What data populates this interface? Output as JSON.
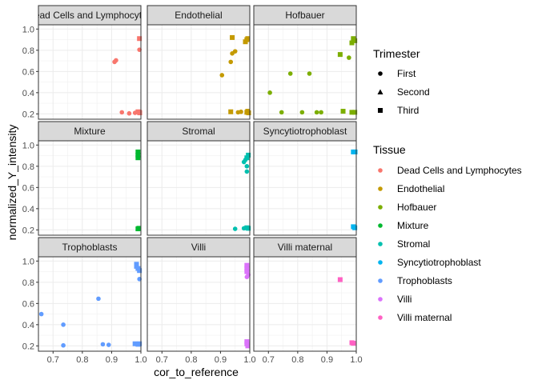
{
  "chart_data": {
    "type": "scatter",
    "xlabel": "cor_to_reference",
    "ylabel": "normalized_Y_intensity",
    "xlim": [
      0.65,
      1.0
    ],
    "ylim": [
      0.2,
      1.0
    ],
    "x_ticks": [
      "0.7",
      "0.8",
      "0.9",
      "1.0"
    ],
    "y_ticks": [
      "0.2",
      "0.4",
      "0.6",
      "0.8",
      "1.0"
    ],
    "facet_layout": "3x3",
    "legends": {
      "shape": {
        "title": "Trimester",
        "entries": [
          {
            "label": "First",
            "shape": "circle"
          },
          {
            "label": "Second",
            "shape": "triangle"
          },
          {
            "label": "Third",
            "shape": "square"
          }
        ]
      },
      "color": {
        "title": "Tissue",
        "entries": [
          {
            "label": "Dead Cells and Lymphocytes",
            "color": "#F8766D"
          },
          {
            "label": "Endothelial",
            "color": "#C49A00"
          },
          {
            "label": "Hofbauer",
            "color": "#7CAE00"
          },
          {
            "label": "Mixture",
            "color": "#00B82F"
          },
          {
            "label": "Stromal",
            "color": "#00C0AF"
          },
          {
            "label": "Syncytiotrophoblast",
            "color": "#00B4EF"
          },
          {
            "label": "Trophoblasts",
            "color": "#619CFF"
          },
          {
            "label": "Villi",
            "color": "#DB72FB"
          },
          {
            "label": "Villi maternal",
            "color": "#FF61C3"
          }
        ]
      }
    },
    "panels": [
      {
        "title": "Dead Cells and Lymphocytes",
        "color": "#F8766D",
        "points": [
          [
            0.995,
            0.91,
            "Third"
          ],
          [
            0.91,
            0.69,
            "First"
          ],
          [
            0.915,
            0.705,
            "First"
          ],
          [
            0.995,
            0.805,
            "First"
          ],
          [
            0.935,
            0.215,
            "First"
          ],
          [
            0.96,
            0.205,
            "First"
          ],
          [
            0.98,
            0.21,
            "First"
          ],
          [
            0.99,
            0.22,
            "Third"
          ],
          [
            0.995,
            0.215,
            "Third"
          ],
          [
            0.996,
            0.21,
            "Third"
          ]
        ]
      },
      {
        "title": "Endothelial",
        "color": "#C49A00",
        "points": [
          [
            0.94,
            0.92,
            "Third"
          ],
          [
            0.985,
            0.88,
            "Third"
          ],
          [
            0.99,
            0.9,
            "Third"
          ],
          [
            0.993,
            0.91,
            "Third"
          ],
          [
            0.95,
            0.79,
            "First"
          ],
          [
            0.94,
            0.77,
            "First"
          ],
          [
            0.935,
            0.69,
            "First"
          ],
          [
            0.905,
            0.565,
            "First"
          ],
          [
            0.935,
            0.22,
            "Third"
          ],
          [
            0.96,
            0.215,
            "First"
          ],
          [
            0.97,
            0.22,
            "First"
          ],
          [
            0.99,
            0.215,
            "Third"
          ],
          [
            0.993,
            0.225,
            "Third"
          ],
          [
            0.996,
            0.21,
            "Third"
          ]
        ]
      },
      {
        "title": "Hofbauer",
        "color": "#7CAE00",
        "points": [
          [
            0.99,
            0.91,
            "Third"
          ],
          [
            0.985,
            0.87,
            "Third"
          ],
          [
            0.995,
            0.89,
            "Third"
          ],
          [
            0.975,
            0.73,
            "First"
          ],
          [
            0.945,
            0.76,
            "Third"
          ],
          [
            0.705,
            0.4,
            "First"
          ],
          [
            0.775,
            0.58,
            "First"
          ],
          [
            0.84,
            0.58,
            "First"
          ],
          [
            0.745,
            0.215,
            "First"
          ],
          [
            0.815,
            0.215,
            "First"
          ],
          [
            0.865,
            0.215,
            "First"
          ],
          [
            0.88,
            0.215,
            "First"
          ],
          [
            0.955,
            0.225,
            "Third"
          ],
          [
            0.985,
            0.215,
            "Third"
          ],
          [
            0.995,
            0.215,
            "Third"
          ]
        ]
      },
      {
        "title": "Mixture",
        "color": "#00B82F",
        "points": [
          [
            0.99,
            0.935,
            "Third"
          ],
          [
            0.99,
            0.905,
            "Third"
          ],
          [
            0.99,
            0.88,
            "Third"
          ],
          [
            0.99,
            0.21,
            "Third"
          ],
          [
            0.993,
            0.215,
            "Third"
          ]
        ]
      },
      {
        "title": "Stromal",
        "color": "#00C0AF",
        "points": [
          [
            0.995,
            0.905,
            "Third"
          ],
          [
            0.99,
            0.88,
            "Third"
          ],
          [
            0.985,
            0.86,
            "First"
          ],
          [
            0.98,
            0.84,
            "First"
          ],
          [
            0.99,
            0.8,
            "First"
          ],
          [
            0.99,
            0.75,
            "First"
          ],
          [
            0.95,
            0.21,
            "First"
          ],
          [
            0.98,
            0.215,
            "First"
          ],
          [
            0.99,
            0.22,
            "Third"
          ],
          [
            0.995,
            0.215,
            "Third"
          ]
        ]
      },
      {
        "title": "Syncytiotrophoblast",
        "color": "#00B4EF",
        "points": [
          [
            0.99,
            0.935,
            "Third"
          ],
          [
            0.996,
            0.935,
            "Third"
          ],
          [
            0.99,
            0.23,
            "Third"
          ],
          [
            0.995,
            0.22,
            "Third"
          ]
        ]
      },
      {
        "title": "Trophoblasts",
        "color": "#619CFF",
        "points": [
          [
            0.985,
            0.97,
            "Third"
          ],
          [
            0.99,
            0.93,
            "Third"
          ],
          [
            0.995,
            0.91,
            "Third"
          ],
          [
            0.985,
            0.95,
            "Third"
          ],
          [
            0.995,
            0.83,
            "First"
          ],
          [
            0.66,
            0.5,
            "First"
          ],
          [
            0.735,
            0.4,
            "First"
          ],
          [
            0.855,
            0.645,
            "First"
          ],
          [
            0.735,
            0.205,
            "First"
          ],
          [
            0.87,
            0.215,
            "First"
          ],
          [
            0.89,
            0.21,
            "First"
          ],
          [
            0.98,
            0.22,
            "Third"
          ],
          [
            0.99,
            0.215,
            "Third"
          ],
          [
            0.995,
            0.22,
            "Third"
          ]
        ]
      },
      {
        "title": "Villi",
        "color": "#DB72FB",
        "points": [
          [
            0.99,
            0.96,
            "Third"
          ],
          [
            0.99,
            0.93,
            "Third"
          ],
          [
            0.99,
            0.9,
            "Third"
          ],
          [
            0.995,
            0.87,
            "First"
          ],
          [
            0.99,
            0.85,
            "First"
          ],
          [
            0.99,
            0.24,
            "Third"
          ],
          [
            0.99,
            0.22,
            "Third"
          ],
          [
            0.993,
            0.2,
            "Third"
          ]
        ]
      },
      {
        "title": "Villi maternal",
        "color": "#FF61C3",
        "points": [
          [
            0.945,
            0.825,
            "Third"
          ],
          [
            0.985,
            0.23,
            "Third"
          ],
          [
            0.99,
            0.225,
            "Third"
          ]
        ]
      }
    ]
  }
}
